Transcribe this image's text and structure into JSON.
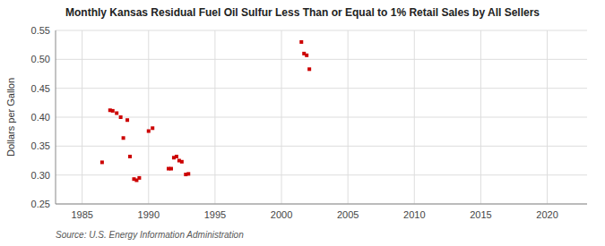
{
  "chart_data": {
    "type": "scatter",
    "title": "Monthly Kansas Residual Fuel Oil Sulfur Less Than or Equal to 1% Retail Sales by All Sellers",
    "ylabel": "Dollars per Gallon",
    "source": "Source: U.S. Energy Information Administration",
    "color": "#cc0000",
    "marker": "square",
    "grid": true,
    "xlim": [
      1983,
      2023
    ],
    "ylim": [
      0.25,
      0.55
    ],
    "xticks": [
      1985,
      1990,
      1995,
      2000,
      2005,
      2010,
      2015,
      2020
    ],
    "yticks": [
      0.25,
      {
        "value": 0.3,
        "label": "0.30"
      },
      0.35,
      {
        "value": 0.4,
        "label": "0.40"
      },
      0.45,
      {
        "value": 0.5,
        "label": "0.50"
      },
      0.55
    ],
    "x": [
      1986.5,
      1987.1,
      1987.3,
      1987.6,
      1987.9,
      1988.1,
      1988.4,
      1988.6,
      1988.9,
      1989.1,
      1989.3,
      1990.0,
      1990.3,
      1991.5,
      1991.7,
      1991.9,
      1992.1,
      1992.3,
      1992.5,
      1992.8,
      1993.0,
      2001.5,
      2001.7,
      2001.9,
      2002.1
    ],
    "values": [
      0.322,
      0.412,
      0.411,
      0.407,
      0.4,
      0.364,
      0.395,
      0.332,
      0.293,
      0.291,
      0.295,
      0.376,
      0.381,
      0.311,
      0.311,
      0.33,
      0.332,
      0.325,
      0.323,
      0.301,
      0.302,
      0.53,
      0.51,
      0.507,
      0.483
    ]
  }
}
